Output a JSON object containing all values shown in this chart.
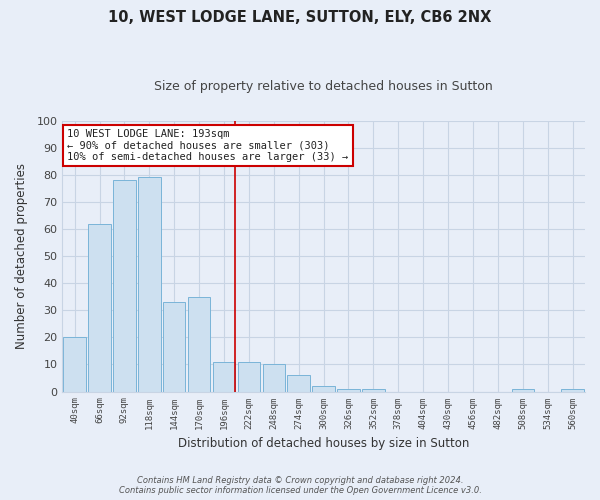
{
  "title": "10, WEST LODGE LANE, SUTTON, ELY, CB6 2NX",
  "subtitle": "Size of property relative to detached houses in Sutton",
  "xlabel": "Distribution of detached houses by size in Sutton",
  "ylabel": "Number of detached properties",
  "bar_values": [
    20,
    62,
    78,
    79,
    33,
    35,
    11,
    11,
    10,
    6,
    2,
    1,
    1,
    0,
    0,
    0,
    0,
    0,
    1,
    0,
    1
  ],
  "bin_labels": [
    "40sqm",
    "66sqm",
    "92sqm",
    "118sqm",
    "144sqm",
    "170sqm",
    "196sqm",
    "222sqm",
    "248sqm",
    "274sqm",
    "300sqm",
    "326sqm",
    "352sqm",
    "378sqm",
    "404sqm",
    "430sqm",
    "456sqm",
    "482sqm",
    "508sqm",
    "534sqm",
    "560sqm"
  ],
  "bar_color": "#cde0f0",
  "bar_edge_color": "#7ab4d8",
  "grid_color": "#c8d4e4",
  "background_color": "#e8eef8",
  "vline_x_index": 6,
  "vline_color": "#cc0000",
  "annotation_line1": "10 WEST LODGE LANE: 193sqm",
  "annotation_line2": "← 90% of detached houses are smaller (303)",
  "annotation_line3": "10% of semi-detached houses are larger (33) →",
  "annotation_box_color": "#ffffff",
  "annotation_box_edge_color": "#cc0000",
  "ylim": [
    0,
    100
  ],
  "yticks": [
    0,
    10,
    20,
    30,
    40,
    50,
    60,
    70,
    80,
    90,
    100
  ],
  "footer_line1": "Contains HM Land Registry data © Crown copyright and database right 2024.",
  "footer_line2": "Contains public sector information licensed under the Open Government Licence v3.0."
}
